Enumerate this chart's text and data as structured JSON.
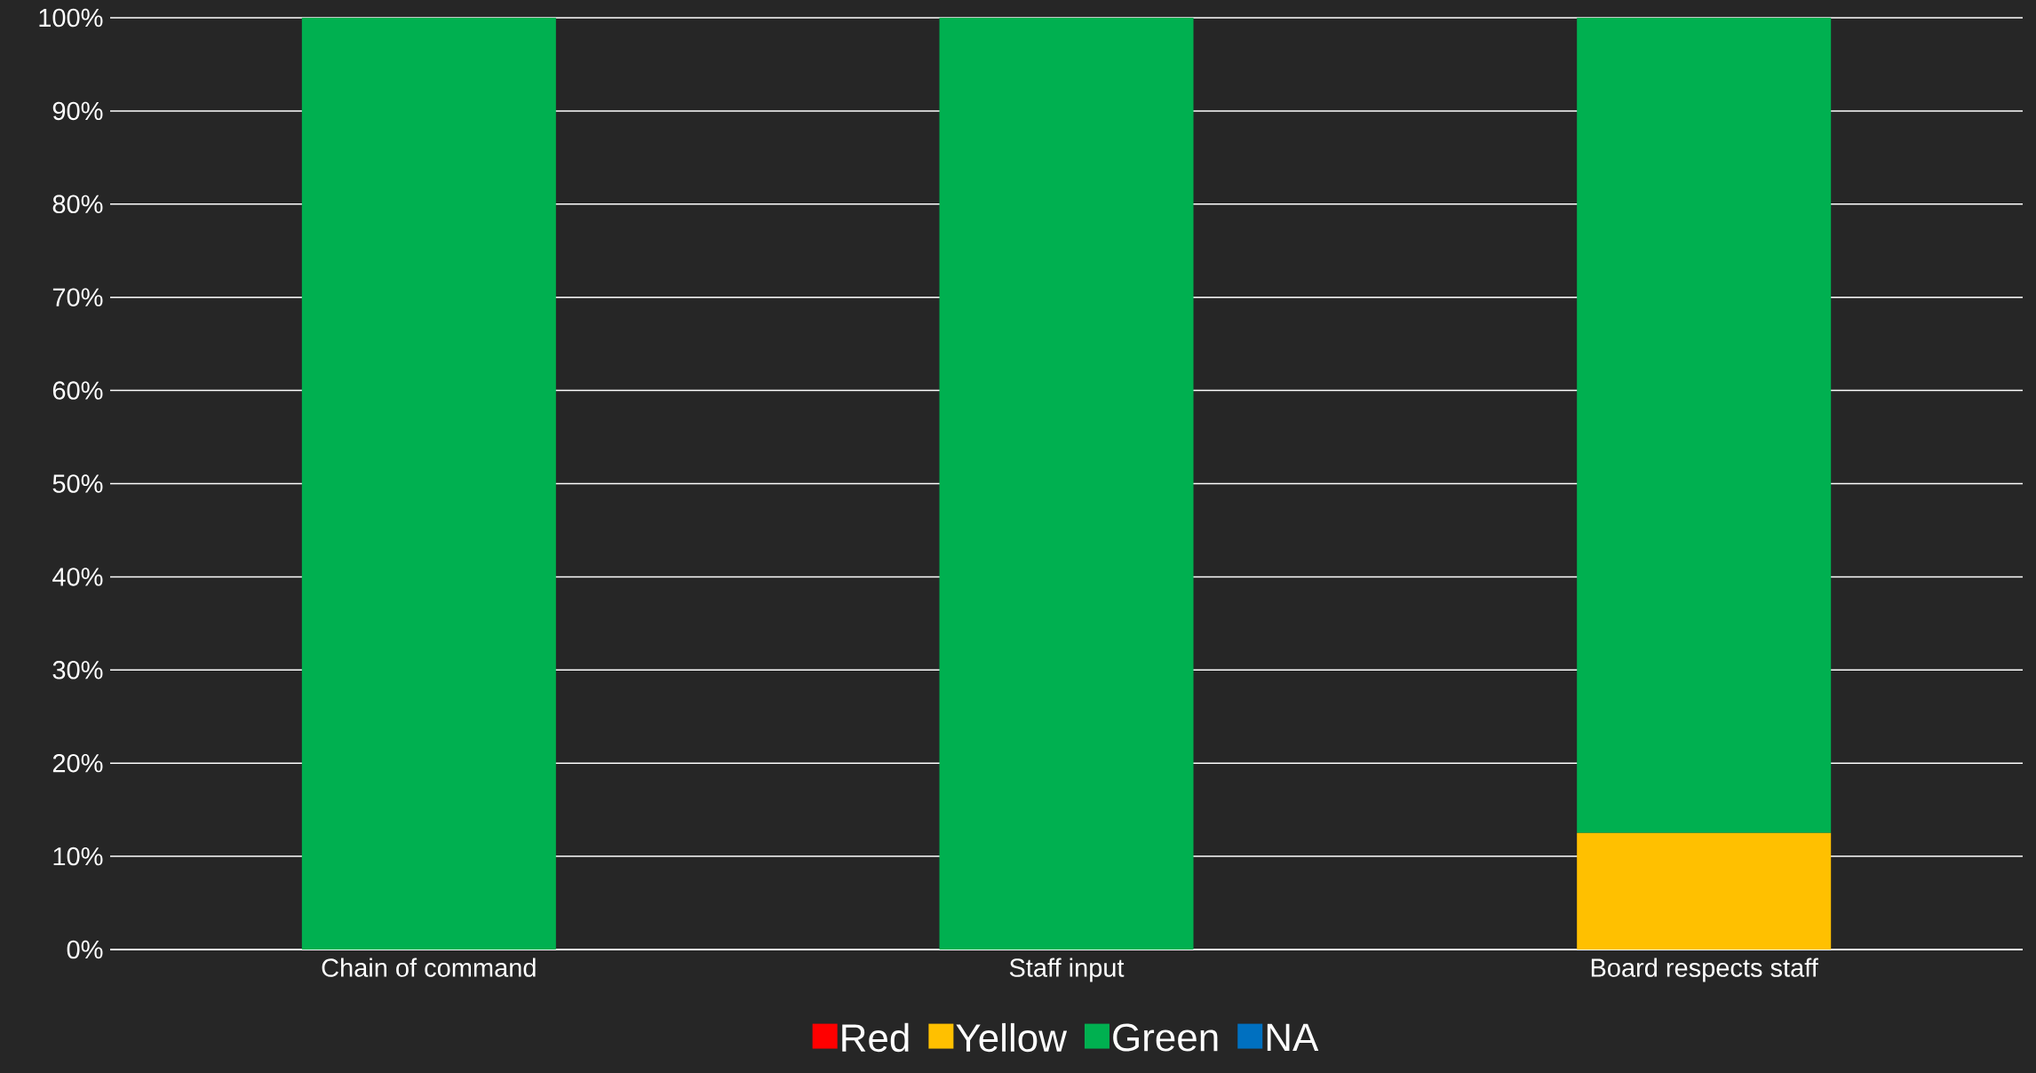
{
  "chart_data": {
    "type": "bar",
    "stacked": true,
    "grid": "y",
    "legend": "bottom",
    "categories": [
      "Chain of command",
      "Staff input",
      "Board respects staff"
    ],
    "series": [
      {
        "name": "Red",
        "color": "#ff0000",
        "values": [
          0,
          0,
          0
        ]
      },
      {
        "name": "Yellow",
        "color": "#ffc000",
        "values": [
          0,
          0,
          12.5
        ]
      },
      {
        "name": "Green",
        "color": "#00b050",
        "values": [
          100,
          100,
          87.5
        ]
      },
      {
        "name": "NA",
        "color": "#0070c0",
        "values": [
          0,
          0,
          0
        ]
      }
    ],
    "ylim": [
      0,
      100
    ],
    "yticks": [
      {
        "value": 0,
        "label": "0%"
      },
      {
        "value": 10,
        "label": "10%"
      },
      {
        "value": 20,
        "label": "20%"
      },
      {
        "value": 30,
        "label": "30%"
      },
      {
        "value": 40,
        "label": "40%"
      },
      {
        "value": 50,
        "label": "50%"
      },
      {
        "value": 60,
        "label": "60%"
      },
      {
        "value": 70,
        "label": "70%"
      },
      {
        "value": 80,
        "label": "80%"
      },
      {
        "value": 90,
        "label": "90%"
      },
      {
        "value": 100,
        "label": "100%"
      }
    ]
  }
}
